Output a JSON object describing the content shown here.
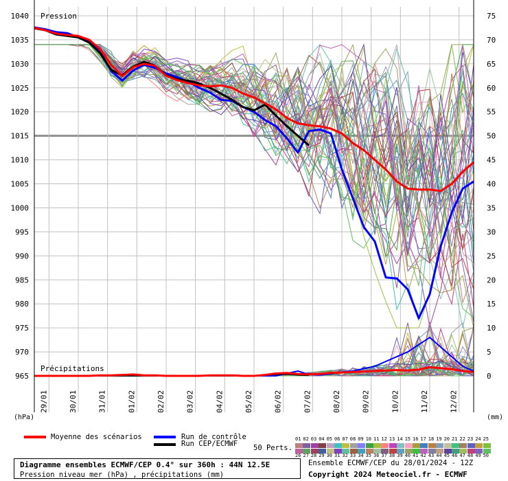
{
  "chart_data": {
    "type": "line",
    "title": "Diagramme ensembles ECMWF/CEP 0.4° sur 360h : 44N 12.5E",
    "subtitle": "Pression niveau mer (hPa) , précipitations (mm)",
    "panel_labels": {
      "pressure": "Pression",
      "precip": "Précipitations"
    },
    "left_axis": {
      "unit": "(hPa)",
      "ticks": [
        1040,
        1035,
        1030,
        1025,
        1020,
        1015,
        1010,
        1005,
        1000,
        995,
        990,
        985,
        980,
        975,
        970,
        965
      ],
      "range": [
        962.5,
        1042
      ]
    },
    "right_axis": {
      "unit": "(mm)",
      "ticks": [
        75,
        70,
        65,
        60,
        55,
        50,
        45,
        40,
        35,
        30,
        25,
        20,
        15,
        10,
        5,
        0
      ],
      "range": [
        -2.5,
        77
      ]
    },
    "x_axis": {
      "range_hours": [
        0,
        360
      ],
      "ticks": [
        "29/01",
        "30/01",
        "31/01",
        "01/02",
        "02/02",
        "03/02",
        "04/02",
        "05/02",
        "06/02",
        "07/02",
        "08/02",
        "09/02",
        "10/02",
        "11/02",
        "12/02"
      ]
    },
    "reference_line_hpa": 1015,
    "series": [
      {
        "name": "Moyenne des scénarios",
        "color": "#ff0000",
        "pressure": [
          1037.5,
          1037.0,
          1036.3,
          1036.0,
          1035.8,
          1035.0,
          1033.0,
          1029.8,
          1027.4,
          1029.3,
          1030.0,
          1029.6,
          1027.5,
          1026.6,
          1026.0,
          1025.5,
          1025.3,
          1025.5,
          1025.0,
          1023.8,
          1023.0,
          1021.8,
          1020.5,
          1018.7,
          1017.6,
          1017.2,
          1017.0,
          1016.5,
          1015.5,
          1013.5,
          1012.0,
          1010.0,
          1008.0,
          1005.5,
          1004.0,
          1003.8,
          1003.8,
          1003.5,
          1005.0,
          1007.5,
          1009.5
        ],
        "precip": [
          0,
          0,
          0,
          0,
          0,
          0,
          0.1,
          0.1,
          0.2,
          0.3,
          0.1,
          0.1,
          0,
          0,
          0,
          0,
          0.1,
          0.1,
          0.1,
          0,
          0,
          0.2,
          0.5,
          0.6,
          0.4,
          0.3,
          0.4,
          0.6,
          0.7,
          0.8,
          0.9,
          1.0,
          1.1,
          1.2,
          1.1,
          1.3,
          1.8,
          1.6,
          1.4,
          1.0,
          0.8
        ]
      },
      {
        "name": "Run de contrôle",
        "color": "#0000ff",
        "pressure": [
          1037.6,
          1037.2,
          1036.6,
          1036.4,
          1035.5,
          1034.6,
          1032.5,
          1028.5,
          1026.5,
          1028.6,
          1029.8,
          1029.2,
          1028.0,
          1027.2,
          1026.3,
          1025.0,
          1024.0,
          1022.5,
          1022.3,
          1021.0,
          1020.0,
          1018.3,
          1017.0,
          1014.5,
          1011.5,
          1016.0,
          1016.3,
          1015.5,
          1008.0,
          1002.0,
          996.0,
          993.0,
          985.5,
          985.3,
          983.0,
          977.0,
          982.0,
          992.0,
          999.0,
          1004.0,
          1005.5
        ],
        "precip": [
          0,
          0,
          0,
          0,
          0,
          0,
          0,
          0,
          0,
          0,
          0,
          0,
          0,
          0,
          0,
          0,
          0,
          0,
          0,
          0,
          0,
          0,
          0,
          0.5,
          1.0,
          0.3,
          0.2,
          0.4,
          0.8,
          1.0,
          1.5,
          2.0,
          3.0,
          4.0,
          5.0,
          6.5,
          8.0,
          6.0,
          4.0,
          2.0,
          1.0
        ]
      },
      {
        "name": "Run CEP/ECMWF",
        "color": "#000000",
        "pressure": [
          1037.4,
          1037.0,
          1036.1,
          1035.8,
          1035.5,
          1034.4,
          1032.2,
          1028.7,
          1027.6,
          1029.4,
          1030.4,
          1029.6,
          1027.6,
          1026.8,
          1026.5,
          1025.9,
          1025.0,
          1023.8,
          1022.5,
          1021.0,
          1020.3,
          1021.5,
          1019.2,
          1017.0,
          1015.0,
          1013.0
        ],
        "precip": [
          0,
          0,
          0,
          0,
          0,
          0,
          0,
          0,
          0,
          0,
          0,
          0,
          0,
          0,
          0,
          0,
          0,
          0,
          0,
          0,
          0,
          0.2,
          0.3,
          0.4,
          0.2,
          0.1
        ]
      }
    ],
    "ensemble_members": 50,
    "ensemble_note": "50 perturbed scenarios (thin coloured lines) spread from about 1033 hPa to 977 hPa after 07/02"
  },
  "legend": {
    "mean": "Moyenne des scénarios",
    "control": "Run de contrôle",
    "oper": "Run CEP/ECMWF",
    "perts_label": "50 Perts.",
    "member_numbers": [
      "01",
      "02",
      "03",
      "04",
      "05",
      "06",
      "07",
      "08",
      "09",
      "10",
      "11",
      "12",
      "13",
      "14",
      "15",
      "16",
      "17",
      "18",
      "19",
      "20",
      "21",
      "22",
      "23",
      "24",
      "25",
      "26",
      "27",
      "28",
      "29",
      "30",
      "31",
      "32",
      "33",
      "34",
      "35",
      "36",
      "37",
      "38",
      "39",
      "40",
      "41",
      "42",
      "43",
      "44",
      "45",
      "46",
      "47",
      "48",
      "49",
      "50"
    ],
    "member_colors": [
      "#c08080",
      "#8060a0",
      "#a040a0",
      "#804040",
      "#c0a0c0",
      "#40c0c0",
      "#c0c040",
      "#a0a0a0",
      "#8080ff",
      "#40a040",
      "#a0c040",
      "#ff8080",
      "#c040c0",
      "#80c0c0",
      "#ffa0c0",
      "#a0a040",
      "#4080c0",
      "#c08040",
      "#80a0c0",
      "#c0c0a0",
      "#40c080",
      "#a08060",
      "#6060c0",
      "#c0a040",
      "#80c040",
      "#c060a0",
      "#60a060",
      "#a04060",
      "#4060a0",
      "#c0c080",
      "#8040c0",
      "#60c0a0",
      "#a06040",
      "#40a0c0",
      "#c08060",
      "#a0c0a0",
      "#806080",
      "#c04040",
      "#60a0c0",
      "#a0a060",
      "#40c040",
      "#c060c0",
      "#8080a0",
      "#c0a080",
      "#6040a0",
      "#40a080",
      "#a0c060",
      "#c04080",
      "#8060c0",
      "#60c060"
    ]
  },
  "footer": {
    "title": "Diagramme ensembles ECMWF/CEP 0.4° sur 360h : 44N 12.5E",
    "subtitle": "Pression niveau mer (hPa) , précipitations (mm)",
    "run_info": "Ensemble ECMWF/CEP du 28/01/2024 - 12Z",
    "copyright": "Copyright 2024 Meteociel.fr - ECMWF"
  }
}
